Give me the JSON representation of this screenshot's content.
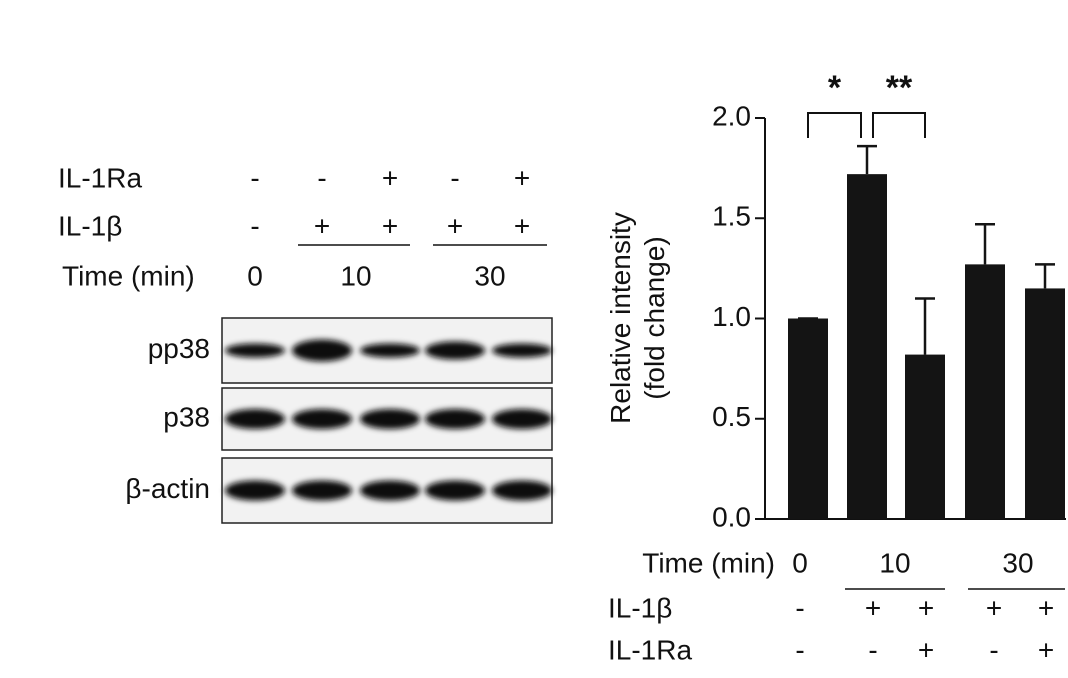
{
  "blot": {
    "treatments": [
      {
        "label": "IL-1Ra",
        "marks": [
          "-",
          "-",
          "+",
          "-",
          "+"
        ]
      },
      {
        "label": "IL-1β",
        "marks": [
          "-",
          "+",
          "+",
          "+",
          "+"
        ]
      }
    ],
    "time": {
      "label": "Time (min)",
      "groups": [
        "0",
        "10",
        "30"
      ]
    },
    "bands": [
      "pp38",
      "p38",
      "β-actin"
    ]
  },
  "chart_data": {
    "type": "bar",
    "ylabel": [
      "Relative intensity",
      "(fold change)"
    ],
    "categories": [
      null,
      null,
      null,
      null,
      null
    ],
    "series": [
      {
        "color": "#141414",
        "values": [
          1.0,
          1.72,
          0.82,
          1.27,
          1.15
        ],
        "errors": [
          0,
          0.14,
          0.28,
          0.2,
          0.12
        ]
      }
    ],
    "ylim": [
      0,
      2.0
    ],
    "yticks": [
      {
        "value": 0,
        "label": "0.0"
      },
      {
        "value": 0.5,
        "label": "0.5"
      },
      {
        "value": 1,
        "label": "1.0"
      },
      {
        "value": 1.5,
        "label": "1.5"
      },
      {
        "value": 2,
        "label": "2.0"
      }
    ],
    "conditions": {
      "time": {
        "label": "Time (min)",
        "groups": [
          "0",
          "10",
          "30"
        ]
      },
      "rows": [
        {
          "label": "IL-1β",
          "marks": [
            "-",
            "+",
            "+",
            "+",
            "+"
          ]
        },
        {
          "label": "IL-1Ra",
          "marks": [
            "-",
            "-",
            "+",
            "-",
            "+"
          ]
        }
      ]
    },
    "significance": [
      {
        "label": "*",
        "bars": [
          0,
          1
        ]
      },
      {
        "label": "**",
        "bars": [
          1,
          2
        ]
      }
    ]
  }
}
